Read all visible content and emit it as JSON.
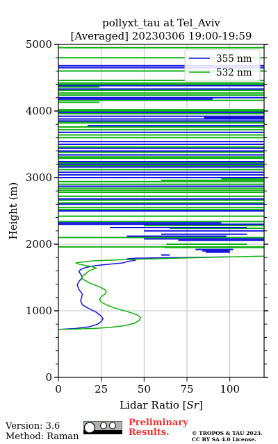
{
  "chart_data": {
    "type": "line",
    "title": "pollyxt_tau at Tel_Aviv",
    "subtitle": "[Averaged] 20230306 19:00-19:59",
    "xlabel": "Lidar Ratio [$Sr$]",
    "ylabel": "Height (m)",
    "xlim": [
      0,
      120
    ],
    "ylim": [
      0,
      5000
    ],
    "xticks": [
      "0",
      "25",
      "50",
      "75",
      "100"
    ],
    "yticks": [
      "0",
      "1000",
      "2000",
      "3000",
      "4000",
      "5000"
    ],
    "grid": true,
    "legend_position": "top-right",
    "series": [
      {
        "name": "355 nm",
        "color": "#1010e0",
        "x": [
          0,
          10,
          18,
          23,
          25,
          26,
          25,
          22,
          18,
          14,
          13,
          14,
          12,
          11,
          12,
          13,
          14,
          13,
          12,
          13,
          16,
          22,
          30,
          38,
          40,
          45,
          42,
          40,
          45,
          100
        ],
        "y": [
          720,
          735,
          760,
          800,
          840,
          880,
          920,
          980,
          1030,
          1090,
          1150,
          1250,
          1320,
          1390,
          1440,
          1470,
          1500,
          1550,
          1590,
          1620,
          1650,
          1680,
          1700,
          1720,
          1740,
          1760,
          1770,
          1780,
          1790,
          1810
        ]
      },
      {
        "name": "532 nm",
        "color": "#10b010",
        "x": [
          0,
          10,
          20,
          30,
          38,
          44,
          47,
          48,
          46,
          40,
          33,
          28,
          25,
          24,
          25,
          27,
          28,
          27,
          24,
          21,
          18,
          16,
          14,
          14,
          16,
          18,
          20,
          22,
          20,
          16,
          12,
          10,
          20,
          40,
          70,
          100,
          120
        ],
        "y": [
          720,
          725,
          735,
          750,
          775,
          810,
          850,
          900,
          940,
          990,
          1040,
          1090,
          1130,
          1170,
          1210,
          1250,
          1290,
          1320,
          1360,
          1390,
          1420,
          1450,
          1480,
          1520,
          1560,
          1600,
          1620,
          1640,
          1660,
          1680,
          1700,
          1720,
          1750,
          1770,
          1790,
          1810,
          1820
        ]
      }
    ],
    "noise_segments_355": [
      [
        60,
        65,
        1838
      ],
      [
        86,
        100,
        1880
      ],
      [
        84,
        100,
        1900
      ],
      [
        80,
        102,
        1920
      ],
      [
        70,
        120,
        2060
      ],
      [
        50,
        120,
        2080
      ],
      [
        40,
        98,
        2120
      ],
      [
        60,
        110,
        2150
      ],
      [
        50,
        120,
        2200
      ],
      [
        30,
        110,
        2250
      ],
      [
        0,
        120,
        2300
      ],
      [
        0,
        95,
        2320
      ],
      [
        0,
        120,
        2500
      ],
      [
        0,
        120,
        2600
      ],
      [
        0,
        120,
        2680
      ],
      [
        0,
        120,
        2870
      ],
      [
        0,
        120,
        3000
      ],
      [
        0,
        120,
        3040
      ],
      [
        0,
        120,
        3080
      ],
      [
        0,
        120,
        3160
      ],
      [
        0,
        120,
        3200
      ],
      [
        0,
        120,
        3240
      ],
      [
        0,
        120,
        3340
      ],
      [
        0,
        120,
        3400
      ],
      [
        0,
        120,
        3440
      ],
      [
        0,
        120,
        3500
      ],
      [
        0,
        120,
        3540
      ],
      [
        0,
        120,
        3680
      ],
      [
        17,
        120,
        3780
      ],
      [
        0,
        120,
        3850
      ],
      [
        0,
        120,
        3880
      ],
      [
        85,
        120,
        3900
      ],
      [
        0,
        120,
        3920
      ],
      [
        0,
        120,
        3980
      ],
      [
        0,
        90,
        4180
      ],
      [
        0,
        120,
        4200
      ],
      [
        0,
        120,
        4330
      ],
      [
        0,
        120,
        4380
      ],
      [
        0,
        120,
        4650
      ],
      [
        0,
        120,
        4680
      ]
    ],
    "noise_segments_532": [
      [
        62,
        120,
        1950
      ],
      [
        0,
        120,
        1960
      ],
      [
        63,
        110,
        2000
      ],
      [
        0,
        120,
        2100
      ],
      [
        65,
        120,
        2240
      ],
      [
        50,
        120,
        2280
      ],
      [
        0,
        120,
        2340
      ],
      [
        0,
        120,
        2420
      ],
      [
        0,
        120,
        2520
      ],
      [
        0,
        120,
        2550
      ],
      [
        0,
        120,
        2620
      ],
      [
        0,
        120,
        2660
      ],
      [
        0,
        120,
        2720
      ],
      [
        0,
        120,
        2780
      ],
      [
        0,
        120,
        2810
      ],
      [
        0,
        120,
        2840
      ],
      [
        0,
        120,
        2900
      ],
      [
        0,
        120,
        2940
      ],
      [
        60,
        120,
        2960
      ],
      [
        95,
        120,
        2980
      ],
      [
        0,
        120,
        3120
      ],
      [
        0,
        120,
        3180
      ],
      [
        0,
        120,
        3220
      ],
      [
        0,
        120,
        3290
      ],
      [
        0,
        120,
        3310
      ],
      [
        0,
        120,
        3380
      ],
      [
        0,
        120,
        3460
      ],
      [
        0,
        120,
        3600
      ],
      [
        0,
        120,
        3640
      ],
      [
        0,
        120,
        3720
      ],
      [
        0,
        120,
        3760
      ],
      [
        0,
        120,
        3820
      ],
      [
        0,
        120,
        3840
      ],
      [
        0,
        120,
        3960
      ],
      [
        0,
        120,
        4000
      ],
      [
        0,
        120,
        4020
      ],
      [
        0,
        24,
        4130
      ],
      [
        0,
        120,
        4160
      ],
      [
        0,
        120,
        4240
      ],
      [
        0,
        120,
        4270
      ],
      [
        0,
        120,
        4310
      ],
      [
        0,
        24,
        4360
      ],
      [
        0,
        120,
        4400
      ],
      [
        0,
        120,
        4420
      ],
      [
        0,
        120,
        4460
      ],
      [
        0,
        120,
        4600
      ],
      [
        0,
        120,
        4800
      ],
      [
        0,
        120,
        4950
      ]
    ]
  },
  "footer": {
    "version": "Version: 3.6",
    "method": "Method: Raman",
    "preliminary_line1": "Preliminary",
    "preliminary_line2": "Results.",
    "credit_line1": "© TROPOS & TAU 2023.",
    "credit_line2": "CC BY SA 4.0 License."
  }
}
